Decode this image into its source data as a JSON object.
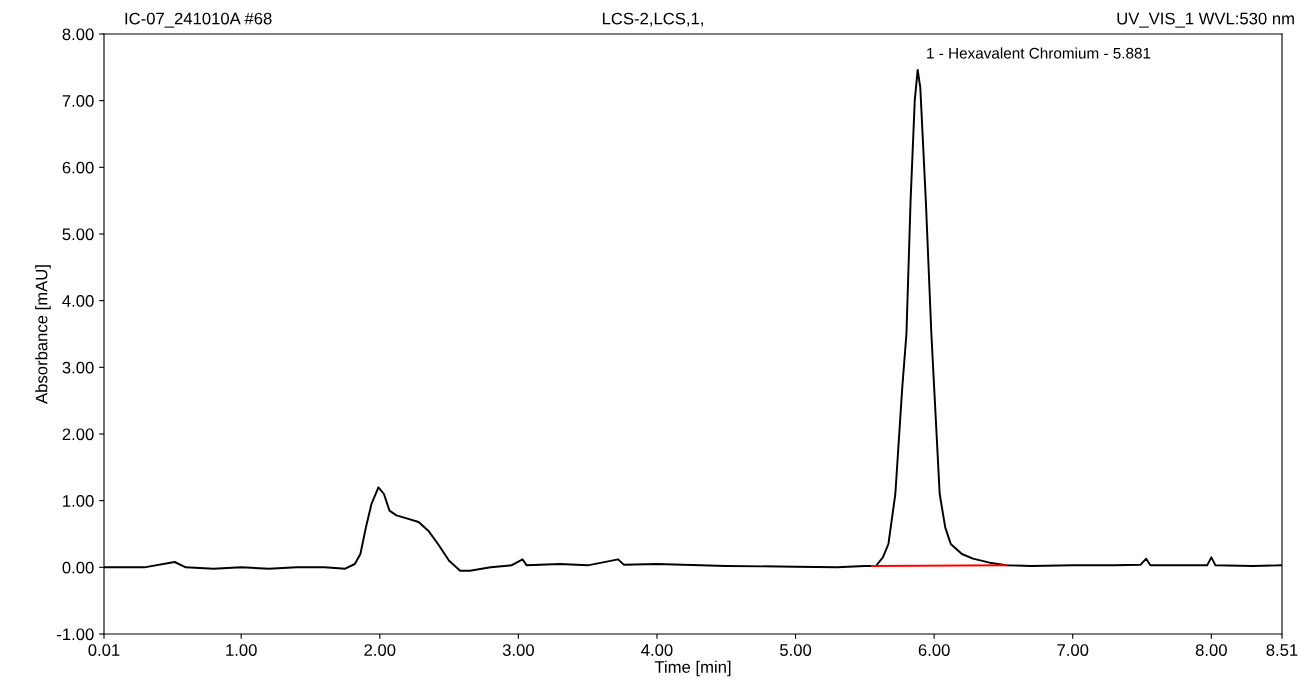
{
  "chart_data": {
    "type": "line",
    "title": "LCS-2,LCS,1,",
    "xlabel": "Time [min]",
    "ylabel": "Absorbance [mAU]",
    "annotations": [
      "IC-07_241010A #68",
      "UV_VIS_1 WVL:530 nm",
      {
        "text": "1 - Hexavalent Chromium - 5.881",
        "x": 5.881,
        "y": 7.46
      }
    ],
    "xlim": [
      0.01,
      8.51
    ],
    "ylim": [
      -1.0,
      8.0
    ],
    "xticks": [
      0.01,
      {
        "value": 1,
        "label": "1.00"
      },
      {
        "value": 2,
        "label": "2.00"
      },
      {
        "value": 3,
        "label": "3.00"
      },
      {
        "value": 4,
        "label": "4.00"
      },
      {
        "value": 5,
        "label": "5.00"
      },
      {
        "value": 6,
        "label": "6.00"
      },
      {
        "value": 7,
        "label": "7.00"
      },
      {
        "value": 8,
        "label": "8.00"
      },
      8.51
    ],
    "yticks": [
      {
        "value": -1,
        "label": "-1.00"
      },
      {
        "value": 0,
        "label": "0.00"
      },
      {
        "value": 1,
        "label": "1.00"
      },
      {
        "value": 2,
        "label": "2.00"
      },
      {
        "value": 3,
        "label": "3.00"
      },
      {
        "value": 4,
        "label": "4.00"
      },
      {
        "value": 5,
        "label": "5.00"
      },
      {
        "value": 6,
        "label": "6.00"
      },
      {
        "value": 7,
        "label": "7.00"
      },
      {
        "value": 8,
        "label": "8.00"
      }
    ],
    "grid": false,
    "legend": false,
    "marker": "none",
    "line_style": "solid",
    "series": [
      {
        "color": "#000000",
        "x": [
          0.01,
          0.3,
          0.52,
          0.6,
          0.8,
          1.0,
          1.2,
          1.4,
          1.6,
          1.75,
          1.82,
          1.86,
          1.9,
          1.94,
          1.99,
          2.03,
          2.07,
          2.12,
          2.2,
          2.28,
          2.35,
          2.42,
          2.5,
          2.58,
          2.65,
          2.8,
          2.95,
          3.03,
          3.06,
          3.3,
          3.5,
          3.72,
          3.76,
          4.0,
          4.5,
          5.0,
          5.3,
          5.5,
          5.58,
          5.63,
          5.67,
          5.72,
          5.77,
          5.8,
          5.83,
          5.86,
          5.881,
          5.9,
          5.94,
          5.98,
          6.0,
          6.04,
          6.08,
          6.12,
          6.2,
          6.28,
          6.4,
          6.52,
          6.7,
          7.0,
          7.3,
          7.49,
          7.53,
          7.56,
          7.8,
          7.97,
          8.0,
          8.03,
          8.3,
          8.51
        ],
        "values": [
          0.0,
          0.0,
          0.08,
          0.0,
          -0.02,
          0.0,
          -0.02,
          0.0,
          0.0,
          -0.02,
          0.05,
          0.2,
          0.6,
          0.95,
          1.2,
          1.1,
          0.85,
          0.78,
          0.73,
          0.68,
          0.55,
          0.35,
          0.1,
          -0.05,
          -0.05,
          0.0,
          0.03,
          0.12,
          0.03,
          0.05,
          0.03,
          0.12,
          0.04,
          0.05,
          0.02,
          0.01,
          0.0,
          0.02,
          0.02,
          0.15,
          0.35,
          1.1,
          2.7,
          3.5,
          5.5,
          7.0,
          7.46,
          7.2,
          5.5,
          3.5,
          2.7,
          1.1,
          0.6,
          0.35,
          0.2,
          0.13,
          0.07,
          0.03,
          0.02,
          0.03,
          0.03,
          0.04,
          0.13,
          0.03,
          0.03,
          0.03,
          0.15,
          0.03,
          0.02,
          0.03
        ]
      },
      {
        "color": "#ff0000",
        "x": [
          5.55,
          6.52
        ],
        "values": [
          0.02,
          0.03
        ]
      }
    ]
  }
}
